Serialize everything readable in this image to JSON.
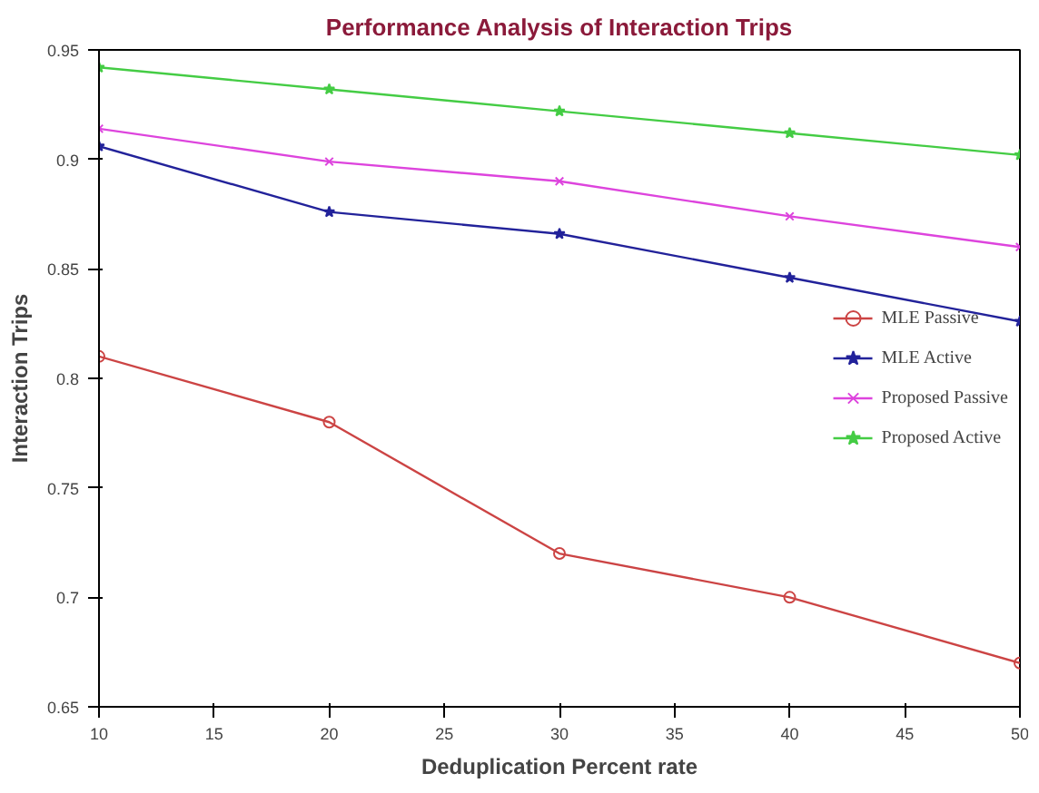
{
  "chart_data": {
    "type": "line",
    "title": "Performance Analysis of Interaction Trips",
    "xlabel": "Deduplication Percent rate",
    "ylabel": "Interaction Trips",
    "x": [
      10,
      20,
      30,
      40,
      50
    ],
    "series": [
      {
        "name": "MLE Passive",
        "color": "#cc4444",
        "marker": "circle",
        "values": [
          0.81,
          0.78,
          0.72,
          0.7,
          0.67
        ]
      },
      {
        "name": "MLE Active",
        "color": "#22229a",
        "marker": "star",
        "values": [
          0.906,
          0.876,
          0.866,
          0.846,
          0.826
        ]
      },
      {
        "name": "Proposed Passive",
        "color": "#dd44dd",
        "marker": "cross",
        "values": [
          0.914,
          0.899,
          0.89,
          0.874,
          0.86
        ]
      },
      {
        "name": "Proposed Active",
        "color": "#44cc44",
        "marker": "star",
        "values": [
          0.942,
          0.932,
          0.922,
          0.912,
          0.902
        ]
      }
    ],
    "xlim": [
      10,
      50
    ],
    "ylim": [
      0.65,
      0.95
    ],
    "xticks": [
      10,
      15,
      20,
      25,
      30,
      35,
      40,
      45,
      50
    ],
    "yticks": [
      0.65,
      0.7,
      0.75,
      0.8,
      0.85,
      0.9,
      0.95
    ],
    "grid": false,
    "legend": "right",
    "line_style": "solid"
  }
}
